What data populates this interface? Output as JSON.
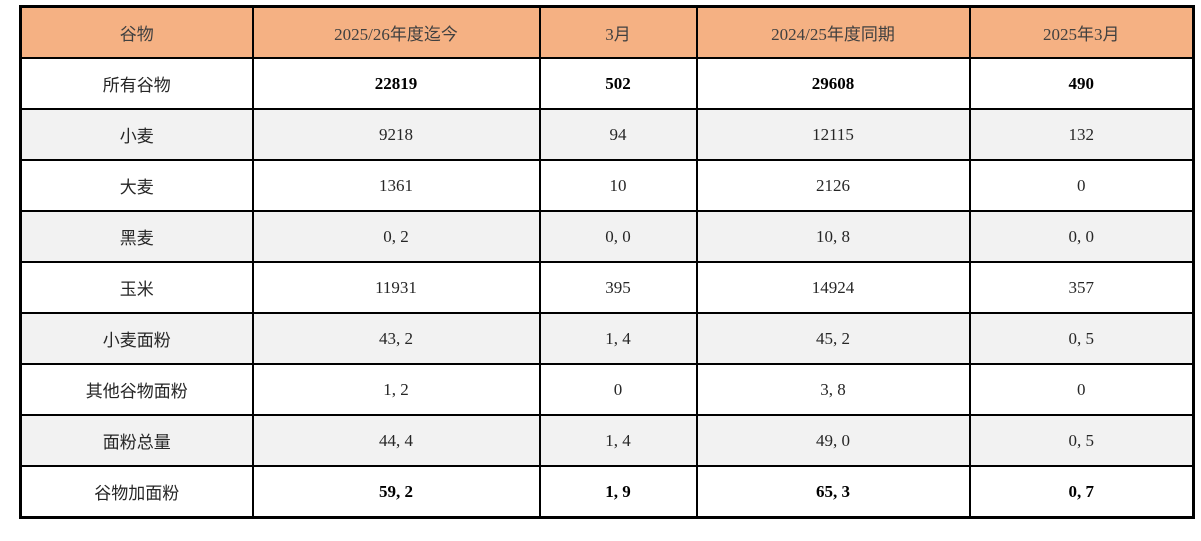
{
  "colors": {
    "header_bg": "#F5B183",
    "stripe_bg": "#F2F2F2",
    "border": "#000000",
    "header_text": "#404040",
    "body_text": "#262626"
  },
  "table": {
    "headers": [
      "谷物",
      "2025/26年度迄今",
      "3月",
      "2024/25年度同期",
      "2025年3月"
    ],
    "rows": [
      {
        "label": "所有谷物",
        "values": [
          "22819",
          "502",
          "29608",
          "490"
        ],
        "bold": true,
        "shaded": false
      },
      {
        "label": "小麦",
        "values": [
          "9218",
          "94",
          "12115",
          "132"
        ],
        "bold": false,
        "shaded": true
      },
      {
        "label": "大麦",
        "values": [
          "1361",
          "10",
          "2126",
          "0"
        ],
        "bold": false,
        "shaded": false
      },
      {
        "label": "黑麦",
        "values": [
          "0, 2",
          "0, 0",
          "10, 8",
          "0, 0"
        ],
        "bold": false,
        "shaded": true
      },
      {
        "label": "玉米",
        "values": [
          "11931",
          "395",
          "14924",
          "357"
        ],
        "bold": false,
        "shaded": false
      },
      {
        "label": "小麦面粉",
        "values": [
          "43, 2",
          "1, 4",
          "45, 2",
          "0, 5"
        ],
        "bold": false,
        "shaded": true
      },
      {
        "label": "其他谷物面粉",
        "values": [
          "1, 2",
          "0",
          "3, 8",
          "0"
        ],
        "bold": false,
        "shaded": false
      },
      {
        "label": "面粉总量",
        "values": [
          "44, 4",
          "1, 4",
          "49, 0",
          "0, 5"
        ],
        "bold": false,
        "shaded": true
      },
      {
        "label": "谷物加面粉",
        "values": [
          "59, 2",
          "1, 9",
          "65, 3",
          "0, 7"
        ],
        "bold": true,
        "shaded": false
      }
    ]
  },
  "chart_data": {
    "type": "table",
    "title": "",
    "columns": [
      "谷物",
      "2025/26年度迄今",
      "3月",
      "2024/25年度同期",
      "2025年3月"
    ],
    "rows": [
      [
        "所有谷物",
        "22819",
        "502",
        "29608",
        "490"
      ],
      [
        "小麦",
        "9218",
        "94",
        "12115",
        "132"
      ],
      [
        "大麦",
        "1361",
        "10",
        "2126",
        "0"
      ],
      [
        "黑麦",
        "0, 2",
        "0, 0",
        "10, 8",
        "0, 0"
      ],
      [
        "玉米",
        "11931",
        "395",
        "14924",
        "357"
      ],
      [
        "小麦面粉",
        "43, 2",
        "1, 4",
        "45, 2",
        "0, 5"
      ],
      [
        "其他谷物面粉",
        "1, 2",
        "0",
        "3, 8",
        "0"
      ],
      [
        "面粉总量",
        "44, 4",
        "1, 4",
        "49, 0",
        "0, 5"
      ],
      [
        "谷物加面粉",
        "59, 2",
        "1, 9",
        "65, 3",
        "0, 7"
      ]
    ]
  }
}
